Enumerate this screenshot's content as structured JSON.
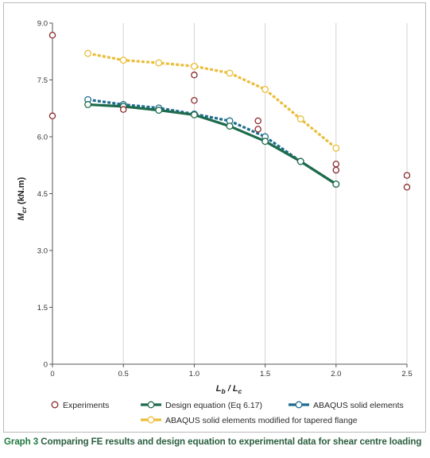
{
  "caption": {
    "label": "Graph 3",
    "text": "Comparing FE results and design equation to experimental data for shear centre loading"
  },
  "chart_data": {
    "type": "line",
    "xlabel_main": "L",
    "xlabel_sub1": "b",
    "xlabel_sep": " / L",
    "xlabel_sub2": "c",
    "ylabel_main": "M",
    "ylabel_sub": "cr",
    "ylabel_unit": " (kN.m)",
    "xlim": [
      0,
      2.5
    ],
    "ylim": [
      0,
      9.0
    ],
    "xticks": [
      "0",
      "0.5",
      "1.0",
      "1.5",
      "2.0",
      "2.5"
    ],
    "xtick_values": [
      0,
      0.5,
      1.0,
      1.5,
      2.0,
      2.5
    ],
    "yticks": [
      "0",
      "1.5",
      "3.0",
      "4.5",
      "6.0",
      "7.5",
      "9.0"
    ],
    "ytick_values": [
      0,
      1.5,
      3.0,
      4.5,
      6.0,
      7.5,
      9.0
    ],
    "grid": "vertical",
    "legend_position": "bottom",
    "series": [
      {
        "name": "Experiments",
        "style": "markers",
        "color": "#8b2a2a",
        "points": [
          [
            0,
            8.68
          ],
          [
            0,
            6.55
          ],
          [
            0.5,
            6.72
          ],
          [
            1.0,
            7.63
          ],
          [
            1.0,
            6.96
          ],
          [
            1.45,
            6.42
          ],
          [
            1.45,
            6.2
          ],
          [
            2.0,
            5.28
          ],
          [
            2.0,
            5.12
          ],
          [
            2.5,
            4.98
          ],
          [
            2.5,
            4.67
          ]
        ]
      },
      {
        "name": "Design equation (Eq 6.17)",
        "style": "solid",
        "color": "#1e6b4c",
        "points": [
          [
            0.25,
            6.85
          ],
          [
            0.5,
            6.8
          ],
          [
            0.75,
            6.7
          ],
          [
            1.0,
            6.58
          ],
          [
            1.25,
            6.28
          ],
          [
            1.5,
            5.88
          ],
          [
            1.75,
            5.35
          ],
          [
            2.0,
            4.75
          ]
        ]
      },
      {
        "name": "ABAQUS solid elements",
        "style": "dotted",
        "color": "#1d6c8f",
        "points": [
          [
            0.25,
            6.98
          ],
          [
            0.5,
            6.85
          ],
          [
            0.75,
            6.76
          ],
          [
            1.0,
            6.6
          ],
          [
            1.25,
            6.42
          ],
          [
            1.5,
            6.0
          ],
          [
            1.75,
            5.35
          ],
          [
            2.0,
            4.75
          ]
        ]
      },
      {
        "name": "ABAQUS solid elements modified for tapered flange",
        "style": "dotted",
        "color": "#eabd3a",
        "points": [
          [
            0.25,
            8.2
          ],
          [
            0.5,
            8.02
          ],
          [
            0.75,
            7.95
          ],
          [
            1.0,
            7.86
          ],
          [
            1.25,
            7.68
          ],
          [
            1.5,
            7.25
          ],
          [
            1.75,
            6.47
          ],
          [
            2.0,
            5.7
          ]
        ]
      }
    ]
  }
}
